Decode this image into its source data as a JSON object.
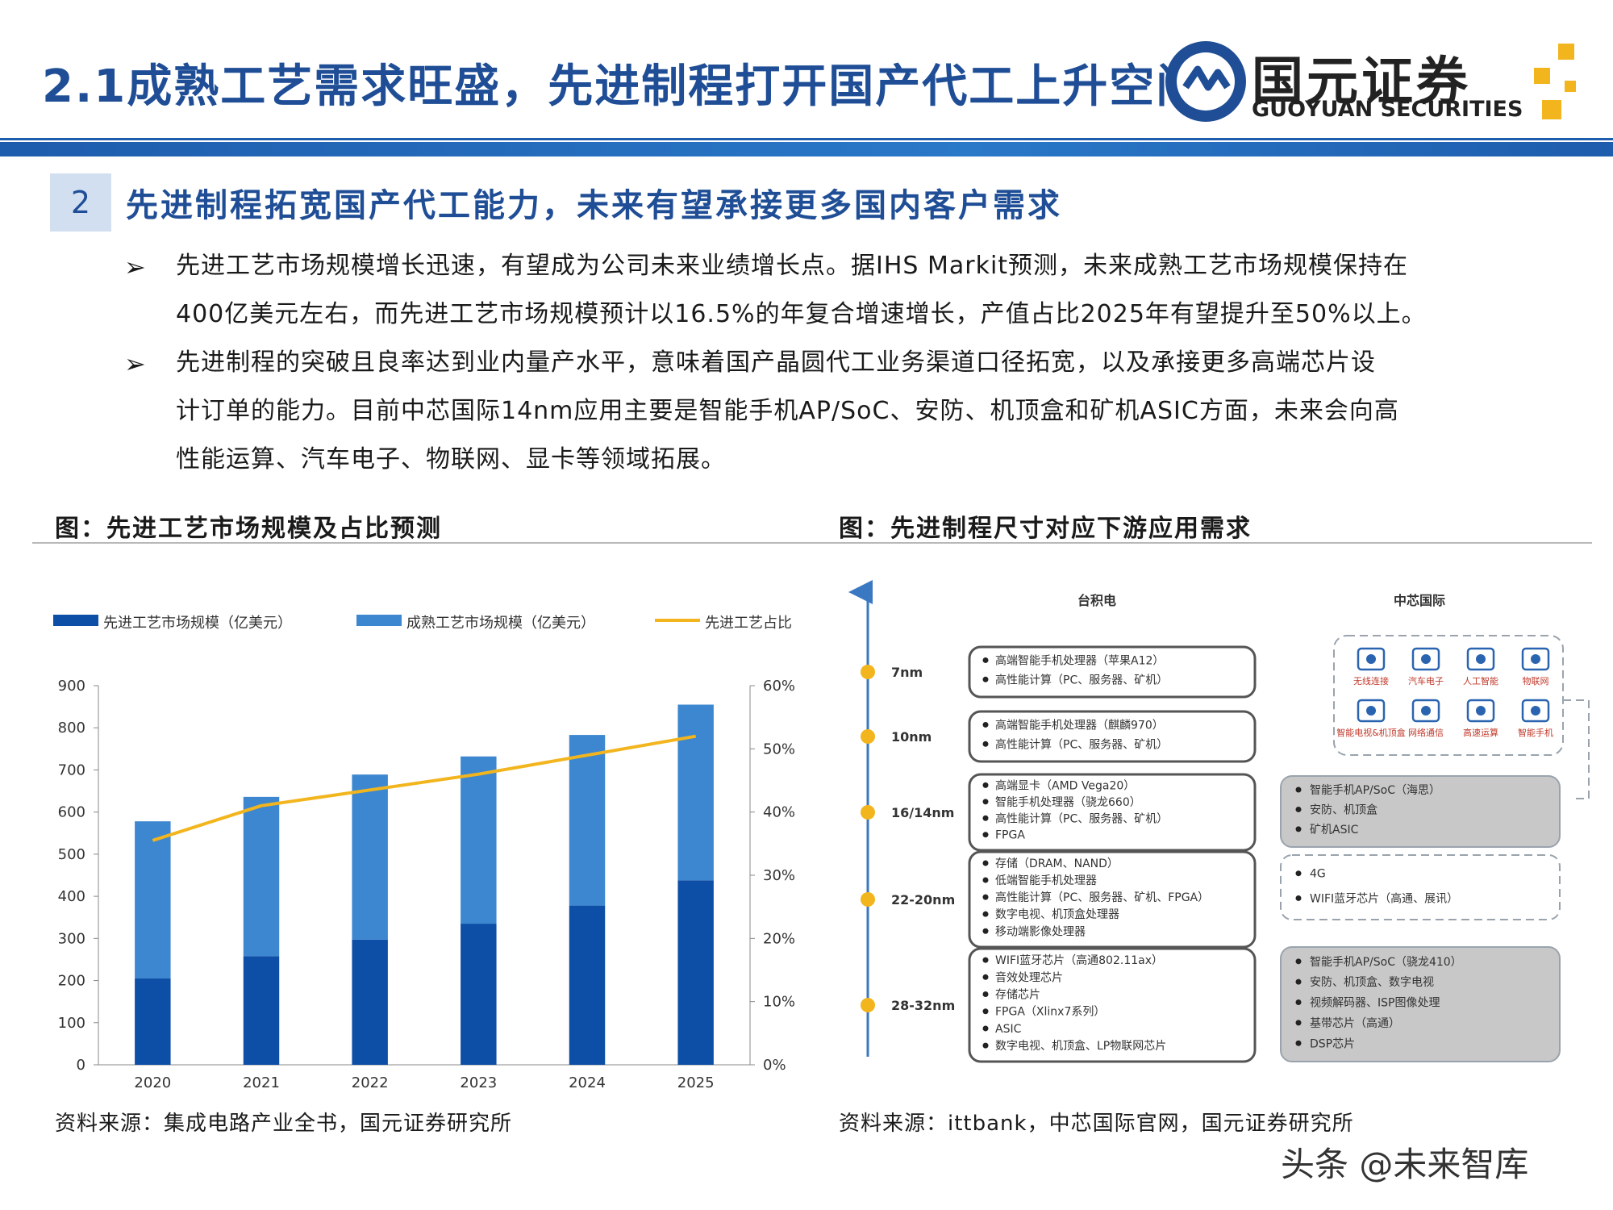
{
  "header": {
    "title": "2.1成熟工艺需求旺盛，先进制程打开国产代工上升空间",
    "logo_cn": "国元证券",
    "logo_en": "GUOYUAN SECURITIES",
    "brand_color": "#1f4e96",
    "accent_color": "#f2b51e"
  },
  "section": {
    "number": "2",
    "title": "先进制程拓宽国产代工能力，未来有望承接更多国内客户需求"
  },
  "bullets": [
    {
      "arrow": "➢",
      "lines": [
        "先进工艺市场规模增长迅速，有望成为公司未来业绩增长点。据IHS Markit预测，未来成熟工艺市场规模保持在",
        "400亿美元左右，而先进工艺市场规模预计以16.5%的年复合增速增长，产值占比2025年有望提升至50%以上。"
      ]
    },
    {
      "arrow": "➢",
      "lines": [
        "先进制程的突破且良率达到业内量产水平，意味着国产晶圆代工业务渠道口径拓宽，以及承接更多高端芯片设",
        "计订单的能力。目前中芯国际14nm应用主要是智能手机AP/SoC、安防、机顶盒和矿机ASIC方面，未来会向高",
        "性能运算、汽车电子、物联网、显卡等领域拓展。"
      ]
    }
  ],
  "figure_left": {
    "title": "图：先进工艺市场规模及占比预测",
    "source": "资料来源：集成电路产业全书，国元证券研究所"
  },
  "figure_right": {
    "title": "图：先进制程尺寸对应下游应用需求",
    "source": "资料来源：ittbank，中芯国际官网，国元证券研究所",
    "col_tsmc": "台积电",
    "col_smic": "中芯国际",
    "nodes": [
      {
        "label": "7nm",
        "items": [
          "高端智能手机处理器（苹果A12）",
          "高性能计算（PC、服务器、矿机）"
        ]
      },
      {
        "label": "10nm",
        "items": [
          "高端智能手机处理器（麒麟970）",
          "高性能计算（PC、服务器、矿机）"
        ]
      },
      {
        "label": "16/14nm",
        "items": [
          "高端显卡（AMD Vega20）",
          "智能手机处理器（骁龙660）",
          "高性能计算（PC、服务器、矿机）",
          "FPGA"
        ]
      },
      {
        "label": "22-20nm",
        "items": [
          "存储（DRAM、NAND）",
          "低端智能手机处理器",
          "高性能计算（PC、服务器、矿机、FPGA）",
          "数字电视、机顶盒处理器",
          "移动端影像处理器"
        ]
      },
      {
        "label": "28-32nm",
        "items": [
          "WIFI蓝牙芯片（高通802.11ax）",
          "音效处理芯片",
          "存储芯片",
          "FPGA（Xlinx7系列）",
          "ASIC",
          "数字电视、机顶盒、LP物联网芯片"
        ]
      }
    ],
    "smic_boxes": [
      {
        "items": [
          "智能手机AP/SoC（海思）",
          "安防、机顶盒",
          "矿机ASIC"
        ]
      },
      {
        "items": [
          "4G",
          "WIFI蓝牙芯片（高通、展讯）"
        ]
      },
      {
        "items": [
          "智能手机AP/SoC（骁龙410）",
          "安防、机顶盒、数字电视",
          "视频解码器、ISP图像处理",
          "基带芯片（高通）",
          "DSP芯片"
        ]
      }
    ],
    "future_icons": [
      {
        "icon": "wireless-icon",
        "label": "无线连接"
      },
      {
        "icon": "car-icon",
        "label": "汽车电子"
      },
      {
        "icon": "brain-icon",
        "label": "人工智能"
      },
      {
        "icon": "cloud-icon",
        "label": "物联网"
      },
      {
        "icon": "monitor-icon",
        "label": "智能电视&机顶盒"
      },
      {
        "icon": "globe-icon",
        "label": "网络通信"
      },
      {
        "icon": "server-icon",
        "label": "高速运算"
      },
      {
        "icon": "phone-icon",
        "label": "智能手机"
      }
    ]
  },
  "chart_data": {
    "type": "bar",
    "stacked": true,
    "categories": [
      "2020",
      "2021",
      "2022",
      "2023",
      "2024",
      "2025"
    ],
    "series": [
      {
        "name": "先进工艺市场规模（亿美元）",
        "values": [
          205,
          258,
          297,
          335,
          378,
          438
        ],
        "color": "#0d4ea6"
      },
      {
        "name": "成熟工艺市场规模（亿美元）",
        "values": [
          373,
          378,
          392,
          397,
          405,
          417
        ],
        "color": "#3d87d0"
      },
      {
        "name": "先进工艺占比",
        "type": "line",
        "axis": "right",
        "values": [
          0.355,
          0.41,
          0.435,
          0.46,
          0.49,
          0.52
        ],
        "color": "#f2b51e"
      }
    ],
    "ylim": [
      0,
      900
    ],
    "y_ticks": [
      "0",
      "100",
      "200",
      "300",
      "400",
      "500",
      "600",
      "700",
      "800",
      "900"
    ],
    "y2lim": [
      0,
      0.6
    ],
    "y2_ticks": [
      "0%",
      "10%",
      "20%",
      "30%",
      "40%",
      "50%",
      "60%"
    ],
    "legend_position": "top"
  },
  "watermark": "头条 @未来智库"
}
